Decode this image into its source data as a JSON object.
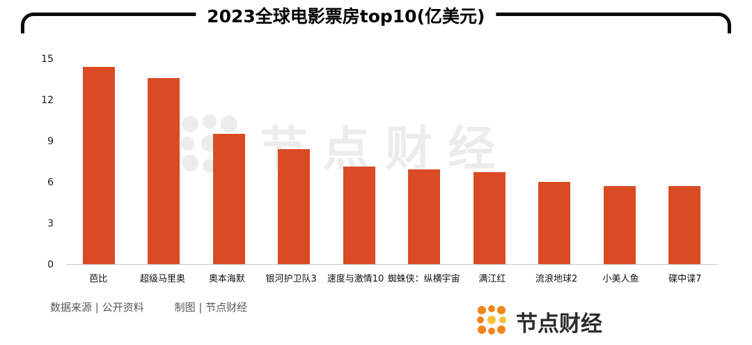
{
  "title": "2023全球电影票房top10(亿美元)",
  "chart_data": {
    "type": "bar",
    "title": "2023全球电影票房top10(亿美元)",
    "categories": [
      "芭比",
      "超级马里奥",
      "奥本海默",
      "银河护卫队3",
      "速度与激情10",
      "蜘蛛侠：纵横宇宙",
      "满江红",
      "流浪地球2",
      "小美人鱼",
      "碟中谍7"
    ],
    "values": [
      14.4,
      13.6,
      9.5,
      8.4,
      7.1,
      6.9,
      6.7,
      6.0,
      5.7,
      5.7
    ],
    "xlabel": "",
    "ylabel": "",
    "ylim": [
      0,
      15
    ],
    "yticks": [
      0,
      3,
      6,
      9,
      12,
      15
    ],
    "grid": false,
    "legend": "none",
    "bar_color": "#da4b23"
  },
  "footer": {
    "source": "数据来源 | 公开资料",
    "credit": "制图 | 节点财经"
  },
  "watermark": {
    "text": "节点财经"
  },
  "logo": {
    "text": "节点财经"
  },
  "colors": {
    "bar": "#da4b23",
    "frame": "#0a0a0a",
    "logo_orange": "#f08519",
    "logo_yellow": "#f6c03a",
    "footer_text": "#595959"
  }
}
